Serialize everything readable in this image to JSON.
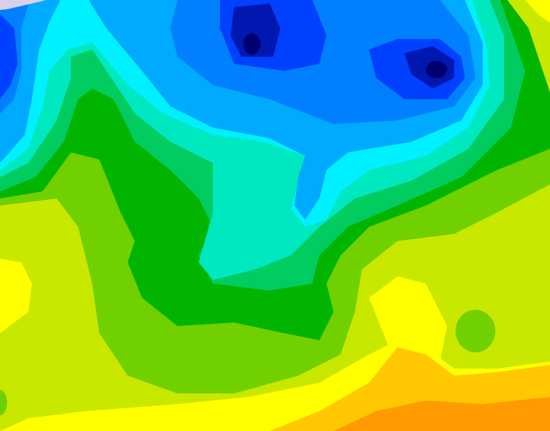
{
  "map": {
    "type": "filled-contour-field",
    "palette": {
      "lavender": "#d8d0e8",
      "darkest_blue": "#000070",
      "dark_blue": "#0018b0",
      "blue": "#0040ff",
      "medium_blue": "#0080ff",
      "light_blue": "#00aaff",
      "cyan": "#00f0ff",
      "aquamarine": "#00e8c0",
      "green": "#00cc60",
      "dark_green": "#00b400",
      "yellow_green": "#70d000",
      "lime": "#c8e800",
      "yellow": "#ffff00",
      "orange_yellow": "#ffc800",
      "orange": "#ff9a00"
    }
  }
}
